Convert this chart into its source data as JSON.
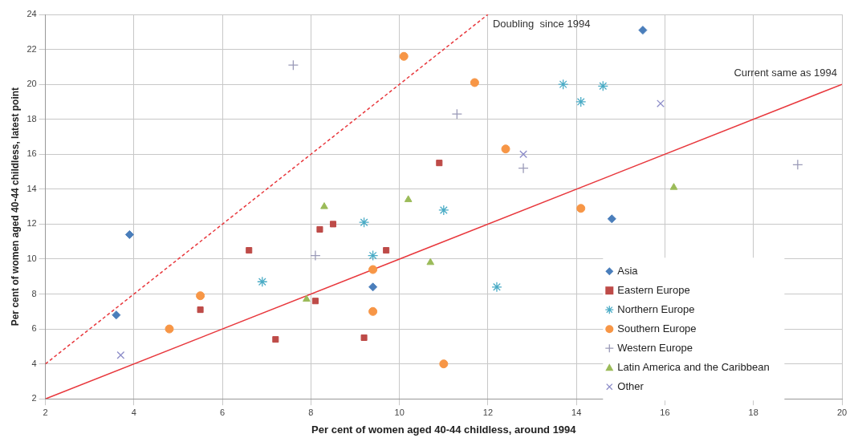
{
  "chart_data": {
    "type": "scatter",
    "xlabel": "Per cent of women aged 40-44 childless, around 1994",
    "ylabel": "Per cent of women aged 40-44 childless, latest point",
    "xlim": [
      2,
      20
    ],
    "xticks": [
      2,
      4,
      6,
      8,
      10,
      12,
      14,
      16,
      18,
      20
    ],
    "ylim": [
      2,
      24
    ],
    "yticks": [
      2,
      4,
      6,
      8,
      10,
      12,
      14,
      16,
      18,
      20,
      22,
      24
    ],
    "grid": true,
    "legend": "bottom right",
    "series": [
      {
        "name": "Asia",
        "color": "#4a7ebb",
        "marker": "diamond",
        "x": [
          3.6,
          3.9,
          9.4,
          14.8,
          15.5
        ],
        "values": [
          6.8,
          11.4,
          8.4,
          12.3,
          23.1
        ]
      },
      {
        "name": "Eastern Europe",
        "color": "#be4b48",
        "marker": "square",
        "x": [
          5.5,
          6.6,
          7.2,
          8.1,
          8.2,
          8.5,
          9.2,
          9.7,
          10.9
        ],
        "values": [
          7.1,
          10.5,
          5.4,
          7.6,
          11.7,
          12.0,
          5.5,
          10.5,
          15.5
        ]
      },
      {
        "name": "Northern Europe",
        "color": "#4bacc6",
        "marker": "cross",
        "x": [
          6.9,
          9.2,
          9.4,
          11.0,
          12.2,
          13.7,
          14.1,
          14.6
        ],
        "values": [
          8.7,
          12.1,
          10.2,
          12.8,
          8.4,
          20.0,
          19.0,
          19.9
        ]
      },
      {
        "name": "Southern Europe",
        "color": "#f79646",
        "marker": "circle",
        "x": [
          4.8,
          5.5,
          9.4,
          9.4,
          11.0,
          10.1,
          11.7,
          12.4,
          14.1
        ],
        "values": [
          6.0,
          7.9,
          9.4,
          7.0,
          4.0,
          21.6,
          20.1,
          16.3,
          12.9
        ]
      },
      {
        "name": "Western Europe",
        "color": "#9a9ab8",
        "marker": "cross",
        "x": [
          7.6,
          8.1,
          11.3,
          12.8,
          19.0
        ],
        "values": [
          21.1,
          10.2,
          18.3,
          15.2,
          15.4
        ]
      },
      {
        "name": "Latin America and the Caribbean",
        "color": "#9bbb59",
        "marker": "triangle",
        "x": [
          7.9,
          8.3,
          10.2,
          10.7,
          16.2
        ],
        "values": [
          7.7,
          13.0,
          13.4,
          9.8,
          14.1
        ]
      },
      {
        "name": "Other",
        "color": "#8c8cc8",
        "marker": "cross",
        "x": [
          3.7,
          12.8,
          15.9
        ],
        "values": [
          4.5,
          16.0,
          18.9
        ]
      },
      {
        "name": "Doubling  since 1994",
        "type": "line",
        "color": "#e8383d",
        "marker": "none",
        "line_style": "dashed",
        "x": [
          2,
          12
        ],
        "values": [
          4,
          24
        ]
      },
      {
        "name": "Current same as 1994",
        "type": "line",
        "color": "#e8383d",
        "marker": "none",
        "line_style": "solid",
        "x": [
          2,
          20
        ],
        "values": [
          2,
          20
        ]
      }
    ]
  }
}
